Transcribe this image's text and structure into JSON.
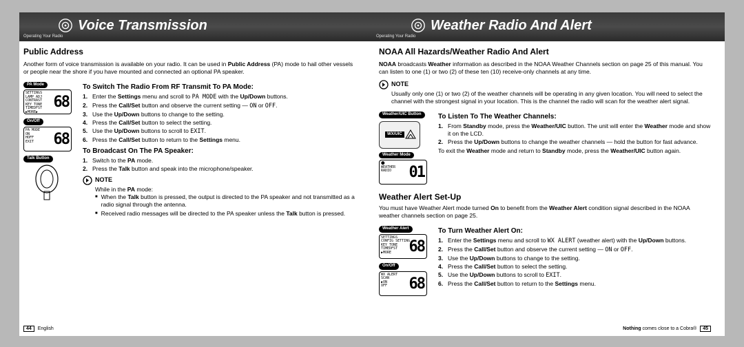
{
  "header": {
    "left_title": "Voice Transmission",
    "right_title": "Weather Radio And Alert",
    "breadcrumb": "Operating Your Radio"
  },
  "left": {
    "section": "Public Address",
    "intro": "Another form of voice transmission is available on your radio. It can be used in <b>Public Address</b> (PA) mode to hail other vessels or people near the shore if you have mounted and connected an optional PA speaker.",
    "pill_pa": "PA Mode",
    "lcd_pa_menu": "SETTINGS\nLAMP ADJ\nCONTRAST\nKEY TONE\nTIMEDFST\n▶MORE▶",
    "lcd_pa_big": "68",
    "h_switch": "To Switch The Radio From RF Transmit To PA Mode:",
    "switch_steps": [
      "Enter the <b>Settings</b> menu and scroll to <span class='mono'>PA MODE</span> with the <b>Up/Down</b> buttons.",
      "Press the <b>Call/Set</b> button and observe the current setting — <span class='mono'>ON</span> or <span class='mono'>OFF</span>.",
      "Use the <b>Up/Down</b> buttons to change to the setting.",
      "Press the <b>Call/Set</b> button to select the setting.",
      "Use the <b>Up/Down</b> buttons to scroll to <span class='mono'>EXIT</span>.",
      "Press the <b>Call/Set</b> button to return to the <b>Settings</b> menu."
    ],
    "pill_onoff": "On/Off",
    "lcd_onoff_menu": "PA MODE\n ON\nHOFF\nEXIT",
    "lcd_onoff_big": "68",
    "pill_talk": "Talk Button",
    "h_broadcast": "To Broadcast On The PA Speaker:",
    "broadcast_steps": [
      "Switch to the <b>PA</b> mode.",
      "Press the <b>Talk</b> button and speak into the microphone/speaker."
    ],
    "note_title": "NOTE",
    "note_intro": "While in the <b>PA</b> mode:",
    "note_bullets": [
      "When the <b>Talk</b> button is pressed, the output is directed to the PA speaker and not transmitted as a radio signal through the antenna.",
      "Received radio messages will be directed to the PA speaker unless the <b>Talk</b> button is pressed."
    ]
  },
  "right": {
    "section": "NOAA All Hazards/Weather Radio And Alert",
    "intro": "<b>NOAA</b> broadcasts <b>Weather</b> information as described in the NOAA Weather Channels section on page 25 of this manual. You can listen to one (1) or two (2) of these ten (10) receive-only channels at any time.",
    "note_title": "NOTE",
    "note_body": "Usually only one (1) or two (2) of the weather channels will be operating in any given location. You will need to select the channel with the strongest signal in your location. This is the channel the radio will scan for the weather alert signal.",
    "pill_wxuic": "Weather/UIC Button",
    "h_listen": "To Listen To The Weather Channels:",
    "listen_steps": [
      "From <b>Standby</b> mode, press the <b>Weather/UIC</b> button. The unit will enter the <b>Weather</b> mode and show it on the LCD.",
      "Press the <b>Up/Down</b> buttons to change the weather channels — hold the button for fast advance."
    ],
    "listen_exit": "To exit the <b>Weather</b> mode and return to <b>Standby</b> mode, press the <b>Weather/UIC</b> button again.",
    "pill_wxmode": "Weather Mode",
    "lcd_wx_menu": "⬤\nWEATHER\nRADIO",
    "lcd_wx_big": "01",
    "sec_alert": "Weather Alert Set-Up",
    "alert_intro": "You must have Weather Alert mode turned <b>On</b> to benefit from the <b>Weather Alert</b> condition signal described in the NOAA weather channels section on page 25.",
    "pill_alert": "Weather Alert",
    "lcd_alert_menu": "SETTINGS\nCONFIG SETTING\nKEY TONE\nTIMEDFST\n▶MORE",
    "lcd_alert_big": "68",
    "h_turn": "To Turn Weather Alert On:",
    "turn_steps": [
      "Enter the <b>Settings</b> menu and scroll to <span class='mono'>WX ALERT</span> (weather alert) with the <b>Up/Down</b> buttons.",
      "Press the <b>Call/Set</b> button and observe the current setting — <span class='mono'>ON</span> or <span class='mono'>OFF</span>.",
      "Use the <b>Up/Down</b> buttons to change to the setting.",
      "Press the <b>Call/Set</b> button to select the setting.",
      "Use the <b>Up/Down</b> buttons to scroll to <span class='mono'>EXIT</span>.",
      "Press the <b>Call/Set</b> button to return to the <b>Settings</b> menu."
    ],
    "pill_onoff": "On/Off",
    "lcd_onoff_menu": "WX ALERT\nSCAN\n▶ON\nOFF",
    "lcd_onoff_big": "68"
  },
  "footer": {
    "left_page": "44",
    "left_lang": "English",
    "right_tag": "<b>Nothing</b> comes close to a Cobra®",
    "right_page": "45"
  }
}
